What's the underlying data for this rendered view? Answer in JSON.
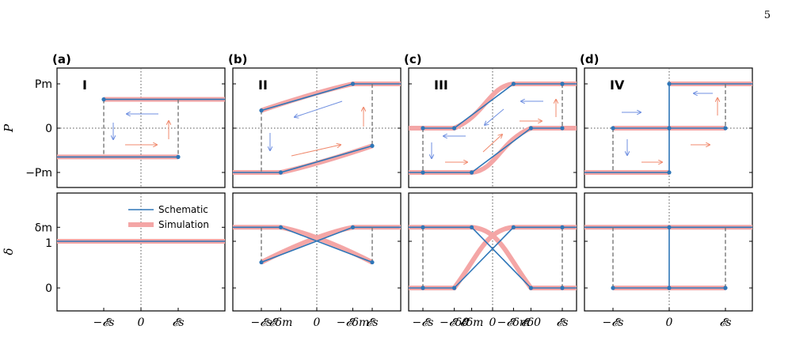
{
  "page": {
    "page_number": "5"
  },
  "figure": {
    "ylabel_top": "P",
    "ylabel_bottom": "δ",
    "yticks_top": [
      "Pm",
      "0",
      "−Pm"
    ],
    "yticks_bottom": [
      "δm",
      "1",
      "0"
    ],
    "legend": {
      "schematic": "Schematic",
      "simulation": "Simulation"
    },
    "colors": {
      "schematic": "#2e76b8",
      "simulation": "#f4a6a6",
      "arrow_blue": "#6f8fe0",
      "arrow_red": "#f08a6e",
      "dashed": "#777777"
    }
  },
  "chart_data": [
    {
      "type": "line",
      "panel": "(a)",
      "regime": "I",
      "xticks": [
        "−𝓔s",
        "0",
        "𝓔s"
      ],
      "polarization": {
        "schematic_upper": {
          "x": [
            -1,
            1,
            2.2
          ],
          "y": [
            0.65,
            0.65,
            0.65
          ]
        },
        "schematic_lower": {
          "x": [
            -2.2,
            -1,
            1
          ],
          "y": [
            -0.65,
            -0.65,
            -0.65
          ]
        },
        "switch_down_at": 1,
        "switch_up_at": -1
      },
      "delta": {
        "x": [
          -2.2,
          2.2
        ],
        "y": [
          1.0,
          1.0
        ]
      },
      "ylim_top": [
        -1.3,
        1.3
      ],
      "ylim_bottom": [
        -0.7,
        1.6
      ]
    },
    {
      "type": "line",
      "panel": "(b)",
      "regime": "II",
      "xticks": [
        "−𝓔s",
        "𝓔δm",
        "0",
        "−𝓔δm",
        "𝓔s"
      ],
      "polarization": {
        "schematic_upper": {
          "x": [
            -1,
            0.65,
            1.5
          ],
          "y": [
            0.4,
            1.0,
            1.0
          ]
        },
        "schematic_lower": {
          "x": [
            -1.5,
            -0.65,
            1
          ],
          "y": [
            -1.0,
            -1.0,
            -0.4
          ]
        }
      },
      "delta": {
        "branch_a": {
          "x": [
            -1.5,
            -0.65,
            1
          ],
          "y": [
            1.3,
            1.3,
            0.55
          ]
        },
        "branch_b": {
          "x": [
            -1,
            0.65,
            1.5
          ],
          "y": [
            0.55,
            1.3,
            1.3
          ]
        }
      },
      "ylim_top": [
        -1.3,
        1.3
      ],
      "ylim_bottom": [
        -0.7,
        1.6
      ]
    },
    {
      "type": "line",
      "panel": "(c)",
      "regime": "III",
      "xticks": [
        "−𝓔s",
        "−𝓔δ0",
        "𝓔δm",
        "0",
        "−𝓔δm",
        "𝓔δ0",
        "𝓔s"
      ],
      "polarization": {
        "schematic_upper": {
          "x": [
            -1,
            -0.55,
            0.3,
            1
          ],
          "y": [
            0,
            0,
            1,
            1
          ]
        },
        "schematic_lower": {
          "x": [
            -1,
            -0.3,
            0.55,
            1
          ],
          "y": [
            -1,
            -1,
            0,
            0
          ]
        }
      },
      "delta": {
        "branch_a": {
          "x": [
            -1,
            -0.55,
            0.3,
            1
          ],
          "y": [
            0,
            0,
            1.3,
            1.3
          ]
        },
        "branch_b": {
          "x": [
            -1,
            -0.3,
            0.55,
            1
          ],
          "y": [
            1.3,
            1.3,
            0,
            0
          ]
        }
      },
      "ylim_top": [
        -1.3,
        1.3
      ],
      "ylim_bottom": [
        -0.7,
        1.6
      ]
    },
    {
      "type": "line",
      "panel": "(d)",
      "regime": "IV",
      "xticks": [
        "−𝓔s",
        "0",
        "𝓔s"
      ],
      "polarization": {
        "schematic_upper": {
          "x": [
            -1,
            0,
            0,
            1.5
          ],
          "y": [
            0,
            0,
            1,
            1
          ]
        },
        "schematic_lower": {
          "x": [
            -1.5,
            0,
            0,
            1
          ],
          "y": [
            -1,
            -1,
            0,
            0
          ]
        }
      },
      "delta": {
        "x": [
          -1.5,
          1.5
        ],
        "y": [
          1.3,
          1.3
        ]
      },
      "ylim_top": [
        -1.3,
        1.3
      ],
      "ylim_bottom": [
        -0.7,
        1.6
      ]
    }
  ]
}
